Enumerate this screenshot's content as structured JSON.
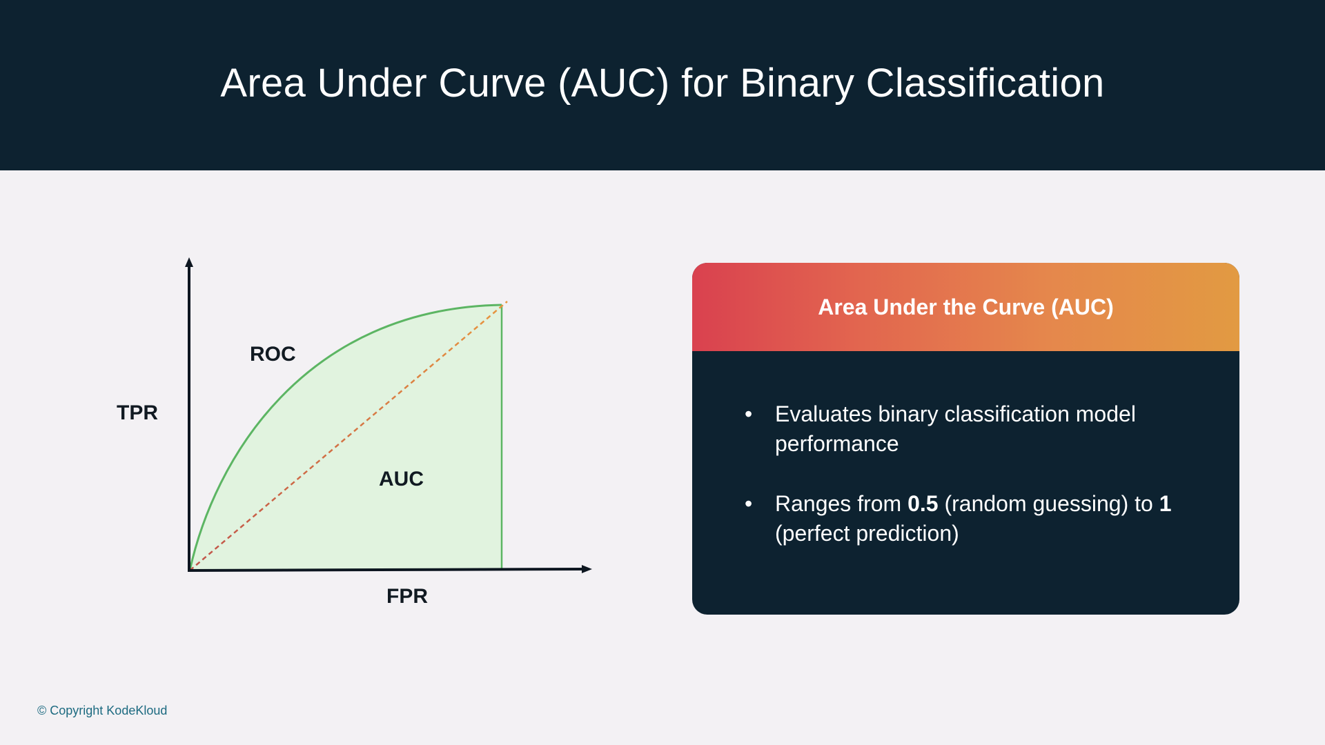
{
  "header": {
    "title": "Area Under Curve (AUC) for Binary Classification"
  },
  "diagram": {
    "y_axis_label": "TPR",
    "x_axis_label": "FPR",
    "curve_label": "ROC",
    "area_label": "AUC",
    "colors": {
      "axis": "#0d1620",
      "roc_curve": "#5cb563",
      "area_fill": "#e1f3df",
      "diagonal_start": "#c0524a",
      "diagonal_end": "#e8963f"
    }
  },
  "card": {
    "title": "Area Under the Curve (AUC)",
    "bullets": [
      {
        "segments": [
          {
            "text": "Evaluates binary classification model performance",
            "bold": false
          }
        ]
      },
      {
        "segments": [
          {
            "text": "Ranges from ",
            "bold": false
          },
          {
            "text": "0.5",
            "bold": true
          },
          {
            "text": " (random guessing) to ",
            "bold": false
          },
          {
            "text": "1",
            "bold": true
          },
          {
            "text": " (perfect prediction)",
            "bold": false
          }
        ]
      }
    ],
    "bullet_symbol": "•"
  },
  "footer": {
    "copyright": "© Copyright KodeKloud"
  }
}
